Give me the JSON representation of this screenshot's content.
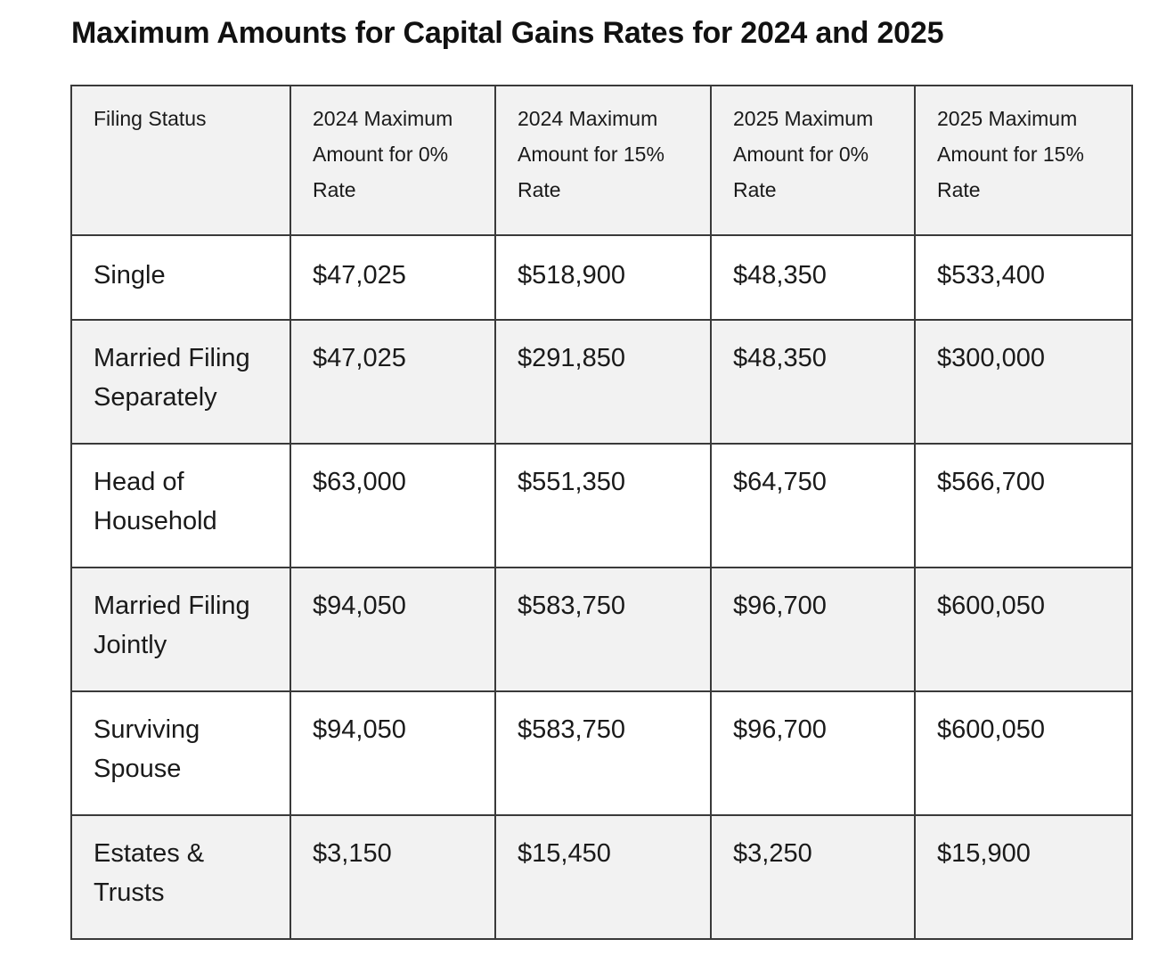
{
  "title": "Maximum Amounts for Capital Gains Rates for 2024 and 2025",
  "table": {
    "headers": [
      "Filing Status",
      "2024 Maximum Amount for 0% Rate",
      "2024 Maximum Amount for 15% Rate",
      "2025 Maximum Amount for 0% Rate",
      "2025 Maximum Amount for 15% Rate"
    ],
    "rows": [
      [
        "Single",
        "$47,025",
        "$518,900",
        "$48,350",
        "$533,400"
      ],
      [
        "Married Filing Separately",
        "$47,025",
        "$291,850",
        "$48,350",
        "$300,000"
      ],
      [
        "Head of Household",
        "$63,000",
        "$551,350",
        "$64,750",
        "$566,700"
      ],
      [
        "Married Filing Jointly",
        "$94,050",
        "$583,750",
        "$96,700",
        "$600,050"
      ],
      [
        "Surviving Spouse",
        "$94,050",
        "$583,750",
        "$96,700",
        "$600,050"
      ],
      [
        "Estates & Trusts",
        "$3,150",
        "$15,450",
        "$3,250",
        "$15,900"
      ]
    ]
  },
  "colors": {
    "shaded_row": "#f2f2f2",
    "border": "#3a3a3a",
    "text": "#1a1a1a"
  }
}
